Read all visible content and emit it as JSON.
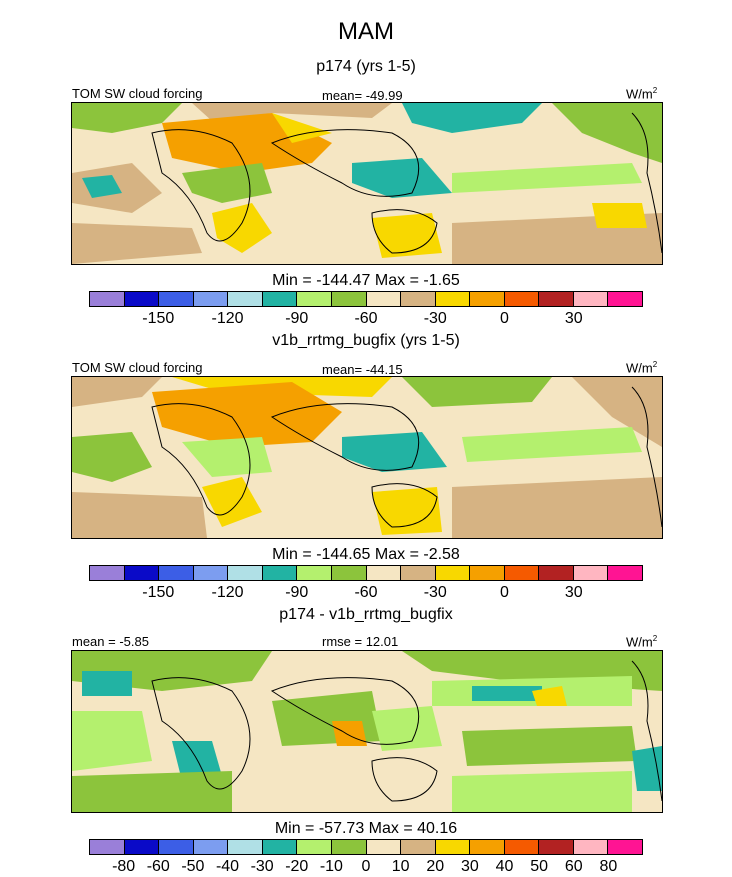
{
  "title": "MAM",
  "panels": [
    {
      "subtitle": "p174 (yrs 1-5)",
      "left_label": "TOM SW cloud forcing",
      "center_label": "mean= -49.99",
      "units_base": "W/m",
      "units_exp": "2",
      "minmax": "Min = -144.47 Max =  -1.65"
    },
    {
      "subtitle": "v1b_rrtmg_bugfix (yrs 1-5)",
      "left_label": "TOM SW cloud forcing",
      "center_label": "mean= -44.15",
      "units_base": "W/m",
      "units_exp": "2",
      "minmax": "Min = -144.65 Max =  -2.58"
    },
    {
      "subtitle": "p174 - v1b_rrtmg_bugfix",
      "left_label": "mean =  -5.85",
      "center_label": "rmse =  12.01",
      "units_base": "W/m",
      "units_exp": "2",
      "minmax": "Min = -57.73 Max =  40.16"
    }
  ],
  "colorbar_abs": {
    "colors": [
      "#9a7fd9",
      "#0a0ac8",
      "#3c5ee6",
      "#7c9df0",
      "#b0e0e6",
      "#22b3a3",
      "#b4f06e",
      "#8cc43c",
      "#f5e6c3",
      "#d6b383",
      "#f8d800",
      "#f5a000",
      "#f55a00",
      "#b22222",
      "#ffb6c1",
      "#ff1493"
    ],
    "ticks": [
      "-150",
      "-120",
      "-90",
      "-60",
      "-30",
      "0",
      "30"
    ]
  },
  "colorbar_diff": {
    "colors": [
      "#9a7fd9",
      "#0a0ac8",
      "#3c5ee6",
      "#7c9df0",
      "#b0e0e6",
      "#22b3a3",
      "#b4f06e",
      "#8cc43c",
      "#f5e6c3",
      "#d6b383",
      "#f8d800",
      "#f5a000",
      "#f55a00",
      "#b22222",
      "#ffb6c1",
      "#ff1493"
    ],
    "ticks": [
      "-80",
      "-60",
      "-50",
      "-40",
      "-30",
      "-20",
      "-10",
      "0",
      "10",
      "20",
      "30",
      "40",
      "50",
      "60",
      "80"
    ]
  }
}
